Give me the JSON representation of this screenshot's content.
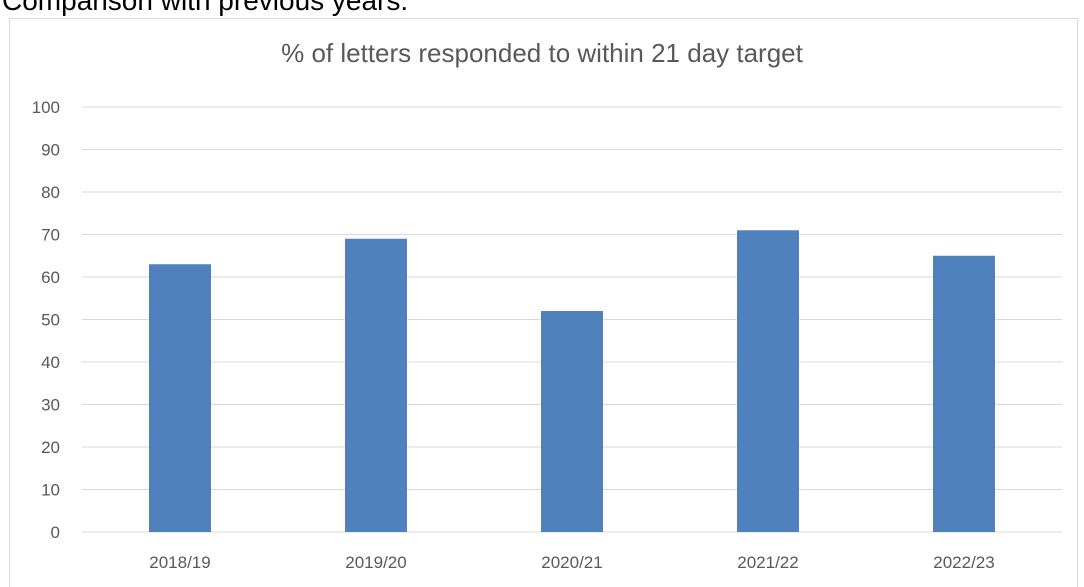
{
  "heading": "Comparison with previous years:",
  "chart_data": {
    "type": "bar",
    "title": "% of letters responded to within 21 day target",
    "categories": [
      "2018/19",
      "2019/20",
      "2020/21",
      "2021/22",
      "2022/23"
    ],
    "values": [
      63,
      69,
      52,
      71,
      65
    ],
    "color": "#4f81bd",
    "ylim": [
      0,
      100
    ],
    "yticks": [
      0,
      10,
      20,
      30,
      40,
      50,
      60,
      70,
      80,
      90,
      100
    ],
    "grid": true
  }
}
